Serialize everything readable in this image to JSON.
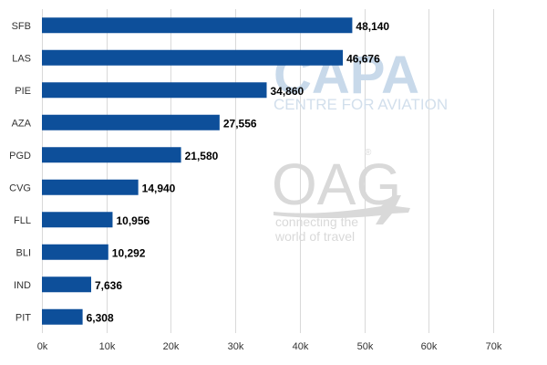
{
  "chart_data": {
    "type": "bar",
    "orientation": "horizontal",
    "categories": [
      "SFB",
      "LAS",
      "PIE",
      "AZA",
      "PGD",
      "CVG",
      "FLL",
      "BLI",
      "IND",
      "PIT"
    ],
    "values": [
      48140,
      46676,
      34860,
      27556,
      21580,
      14940,
      10956,
      10292,
      7636,
      6308
    ],
    "data_labels": [
      "48,140",
      "46,676",
      "34,860",
      "27,556",
      "21,580",
      "14,940",
      "10,956",
      "10,292",
      "7,636",
      "6,308"
    ],
    "xlim": [
      0,
      70000
    ],
    "x_ticks": [
      0,
      10000,
      20000,
      30000,
      40000,
      50000,
      60000,
      70000
    ],
    "x_tick_labels": [
      "0k",
      "10k",
      "20k",
      "30k",
      "40k",
      "50k",
      "60k",
      "70k"
    ],
    "grid": true,
    "bar_color": "#0d4f9a",
    "title": "",
    "xlabel": "",
    "ylabel": ""
  },
  "watermarks": {
    "capa": {
      "logo": "CAPA",
      "subtitle": "CENTRE FOR AVIATION",
      "color": "#c8d9ea"
    },
    "oag": {
      "logo": "OAG",
      "registered": "®",
      "tagline_1": "connecting the",
      "tagline_2": "world of travel",
      "icon": "airplane-icon",
      "color": "#d9d9d9"
    }
  }
}
